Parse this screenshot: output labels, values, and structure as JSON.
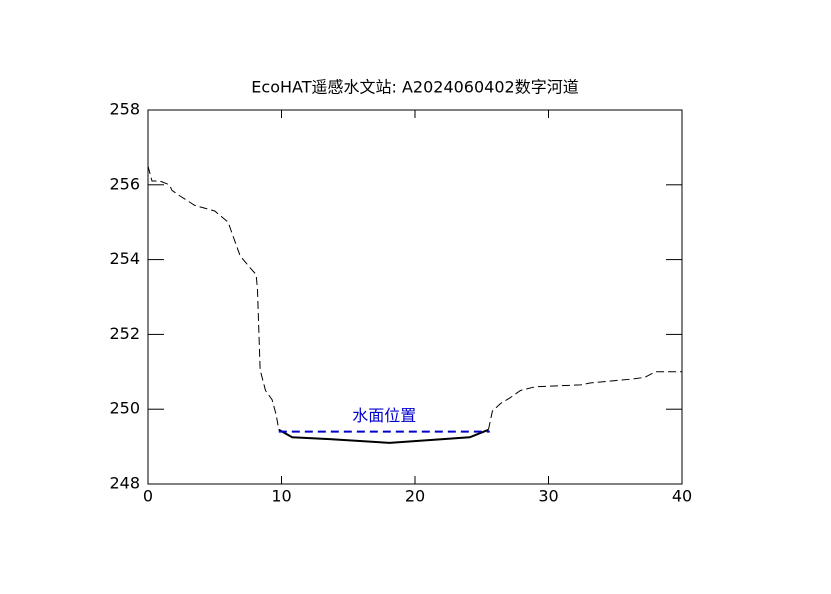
{
  "chart_data": {
    "type": "line",
    "title": "EcoHAT遥感水文站: A2024060402数字河道",
    "annotation": "水面位置",
    "xlim": [
      0,
      40
    ],
    "xticks": [
      0,
      10,
      20,
      30,
      40
    ],
    "ylim": [
      248,
      258
    ],
    "yticks": [
      248,
      250,
      252,
      254,
      256,
      258
    ],
    "grid": false,
    "series": [
      {
        "color": "#000000",
        "style": "dashed",
        "x": [
          0,
          0.3,
          0.9,
          1.6,
          1.8,
          2.4,
          3.5,
          5.0,
          6.0,
          6.5,
          6.9,
          7.6,
          8.1,
          8.2,
          8.4,
          8.8,
          9.3,
          9.6,
          9.8,
          null,
          25.5,
          25.8,
          26.4,
          27.1,
          27.9,
          29.0,
          32.4,
          33.1,
          36.1,
          37.2,
          38.0,
          40
        ],
        "values": [
          256.5,
          256.1,
          256.1,
          256.0,
          255.85,
          255.7,
          255.45,
          255.3,
          255.0,
          254.5,
          254.1,
          253.8,
          253.6,
          253.2,
          251.05,
          250.5,
          250.25,
          249.85,
          249.45,
          null,
          249.45,
          249.95,
          250.15,
          250.3,
          250.5,
          250.6,
          250.65,
          250.7,
          250.8,
          250.85,
          251.0,
          251.0
        ]
      },
      {
        "color": "#000000",
        "style": "solid",
        "x": [
          9.8,
          10.8,
          13.6,
          18.1,
          24.1,
          25.5
        ],
        "values": [
          249.45,
          249.25,
          249.2,
          249.1,
          249.25,
          249.45
        ]
      },
      {
        "color": "#0000cc",
        "style": "dashed",
        "x": [
          9.8,
          25.6
        ],
        "values": [
          249.4,
          249.4
        ]
      }
    ]
  }
}
